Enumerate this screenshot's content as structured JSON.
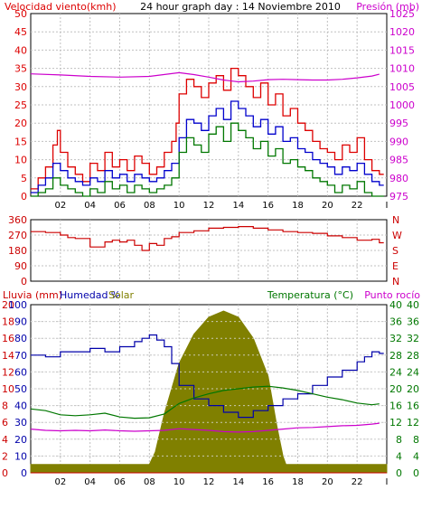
{
  "chart_data": [
    {
      "type": "line",
      "title": "24 hour graph day : 14 Noviembre 2010",
      "left_label": "Velocidad viento(kmh)",
      "right_label": "Presión (mb)",
      "x_ticks": [
        "02",
        "04",
        "06",
        "08",
        "10",
        "12",
        "14",
        "16",
        "18",
        "20",
        "22",
        "I"
      ],
      "y_left_ticks": [
        0,
        5,
        10,
        15,
        20,
        25,
        30,
        35,
        40,
        45,
        50
      ],
      "y_right_ticks": [
        975,
        980,
        985,
        990,
        995,
        1000,
        1005,
        1010,
        1015,
        1020,
        1025
      ],
      "ylim_left": [
        0,
        50
      ],
      "ylim_right": [
        975,
        1025
      ],
      "xlim": [
        0,
        24
      ],
      "grid": true,
      "colors": {
        "gust": "#dd0000",
        "average": "#0000cc",
        "minimum": "#007700",
        "pressure": "#cc00cc",
        "frame": "#000000",
        "grid": "#c0c0c0"
      },
      "series": [
        {
          "name": "",
          "role": "gust",
          "x": [
            0,
            0.5,
            1,
            1.5,
            1.8,
            2,
            2.5,
            3,
            3.5,
            4,
            4.5,
            5,
            5.5,
            6,
            6.5,
            7,
            7.5,
            8,
            8.5,
            9,
            9.5,
            9.8,
            10,
            10.5,
            11,
            11.5,
            12,
            12.5,
            13,
            13.5,
            14,
            14.5,
            15,
            15.5,
            16,
            16.5,
            17,
            17.5,
            18,
            18.5,
            19,
            19.5,
            20,
            20.5,
            21,
            21.5,
            22,
            22.5,
            23,
            23.5
          ],
          "values": [
            2,
            5,
            8,
            14,
            18,
            12,
            8,
            6,
            4,
            9,
            7,
            12,
            8,
            10,
            7,
            11,
            9,
            6,
            8,
            12,
            15,
            20,
            28,
            32,
            30,
            27,
            31,
            33,
            29,
            35,
            33,
            30,
            27,
            31,
            25,
            28,
            22,
            24,
            20,
            18,
            15,
            13,
            12,
            10,
            14,
            12,
            16,
            10,
            7,
            6
          ]
        },
        {
          "name": "",
          "role": "average",
          "x": [
            0,
            0.5,
            1,
            1.5,
            2,
            2.5,
            3,
            3.5,
            4,
            4.5,
            5,
            5.5,
            6,
            6.5,
            7,
            7.5,
            8,
            8.5,
            9,
            9.5,
            10,
            10.5,
            11,
            11.5,
            12,
            12.5,
            13,
            13.5,
            14,
            14.5,
            15,
            15.5,
            16,
            16.5,
            17,
            17.5,
            18,
            18.5,
            19,
            19.5,
            20,
            20.5,
            21,
            21.5,
            22,
            22.5,
            23,
            23.5
          ],
          "values": [
            1,
            3,
            5,
            9,
            7,
            5,
            4,
            3,
            5,
            4,
            7,
            5,
            6,
            4,
            6,
            5,
            4,
            5,
            7,
            9,
            16,
            21,
            20,
            18,
            22,
            24,
            21,
            26,
            24,
            22,
            19,
            21,
            17,
            19,
            15,
            16,
            13,
            12,
            10,
            9,
            8,
            6,
            8,
            7,
            9,
            6,
            4,
            3
          ]
        },
        {
          "name": "",
          "role": "minimum",
          "x": [
            0,
            0.5,
            1,
            1.5,
            2,
            2.5,
            3,
            3.5,
            4,
            4.5,
            5,
            5.5,
            6,
            6.5,
            7,
            7.5,
            8,
            8.5,
            9,
            9.5,
            10,
            10.5,
            11,
            11.5,
            12,
            12.5,
            13,
            13.5,
            14,
            14.5,
            15,
            15.5,
            16,
            16.5,
            17,
            17.5,
            18,
            18.5,
            19,
            19.5,
            20,
            20.5,
            21,
            21.5,
            22,
            22.5,
            23,
            23.5
          ],
          "values": [
            0,
            1,
            2,
            5,
            3,
            2,
            1,
            0,
            2,
            1,
            4,
            2,
            3,
            1,
            3,
            2,
            1,
            2,
            3,
            5,
            12,
            16,
            14,
            12,
            17,
            19,
            15,
            20,
            18,
            16,
            13,
            15,
            11,
            13,
            9,
            10,
            8,
            7,
            5,
            4,
            3,
            1,
            3,
            2,
            4,
            1,
            0,
            0
          ]
        },
        {
          "name": "",
          "role": "pressure",
          "x": [
            0,
            2,
            4,
            6,
            8,
            10,
            11,
            12,
            13,
            14,
            15,
            16,
            17,
            18,
            19,
            20,
            21,
            22,
            23,
            23.5
          ],
          "values": [
            1008.5,
            1008.2,
            1007.8,
            1007.6,
            1007.8,
            1008.8,
            1008.3,
            1007.6,
            1006.8,
            1006.3,
            1006.5,
            1006.9,
            1007.0,
            1006.9,
            1006.8,
            1006.8,
            1007.0,
            1007.4,
            1007.9,
            1008.4
          ]
        }
      ]
    },
    {
      "type": "line",
      "title": "",
      "left_ticks": [
        0,
        90,
        180,
        270,
        360
      ],
      "right_ticks": [
        "N",
        "W",
        "S",
        "E",
        "N"
      ],
      "ylim": [
        0,
        360
      ],
      "xlim": [
        0,
        24
      ],
      "grid": true,
      "colors": {
        "direction": "#cc0000",
        "right_axis": "#cc0000",
        "grid": "#c0c0c0"
      },
      "series": [
        {
          "name": "",
          "role": "direction",
          "x": [
            0,
            0.5,
            1,
            1.5,
            2,
            2.5,
            3,
            3.5,
            4,
            4.5,
            5,
            5.5,
            6,
            6.5,
            7,
            7.5,
            8,
            8.5,
            9,
            9.5,
            10,
            11,
            12,
            13,
            14,
            15,
            16,
            17,
            18,
            19,
            20,
            21,
            22,
            23,
            23.5
          ],
          "values": [
            290,
            290,
            285,
            285,
            270,
            255,
            250,
            250,
            200,
            200,
            230,
            240,
            230,
            240,
            210,
            180,
            220,
            210,
            250,
            260,
            285,
            295,
            310,
            315,
            320,
            310,
            300,
            290,
            285,
            280,
            265,
            255,
            240,
            245,
            225
          ]
        }
      ]
    },
    {
      "type": "line",
      "title": "",
      "legend": [
        "Lluvia (mm)",
        "Humedad %",
        "Solar",
        "Temperatura (°C)",
        "Punto rocío"
      ],
      "left_outer_ticks": [
        0,
        2,
        4,
        6,
        8,
        10,
        12,
        14,
        16,
        18,
        20
      ],
      "left_inner_ticks": [
        0,
        10,
        20,
        30,
        40,
        50,
        60,
        70,
        80,
        90,
        100
      ],
      "right_inner_ticks": [
        0,
        4,
        8,
        12,
        16,
        20,
        24,
        28,
        32,
        36,
        40
      ],
      "right_outer_ticks": [
        0,
        4,
        8,
        12,
        16,
        20,
        24,
        28,
        32,
        36,
        40
      ],
      "ylim_humidity": [
        0,
        100
      ],
      "ylim_temperature": [
        0,
        40
      ],
      "xlim": [
        0,
        24
      ],
      "grid": true,
      "colors": {
        "rain": "#cc0000",
        "humidity": "#0000aa",
        "solar": "#808000",
        "temperature": "#007700",
        "dewpoint": "#cc00cc",
        "grid": "#c0c0c0"
      },
      "series": [
        {
          "name": "",
          "role": "humidity",
          "x": [
            0,
            1,
            2,
            3,
            4,
            5,
            6,
            7,
            7.5,
            8,
            8.5,
            9,
            9.5,
            10,
            11,
            12,
            13,
            14,
            15,
            16,
            17,
            18,
            19,
            20,
            21,
            22,
            22.5,
            23,
            23.5
          ],
          "values": [
            70,
            69,
            72,
            72,
            74,
            72,
            75,
            78,
            80,
            82,
            79,
            75,
            65,
            52,
            44,
            40,
            36,
            33,
            37,
            40,
            44,
            47,
            52,
            57,
            61,
            66,
            69,
            72,
            71
          ]
        },
        {
          "name": "",
          "role": "temperature",
          "x": [
            0,
            1,
            2,
            3,
            4,
            5,
            6,
            7,
            8,
            9,
            10,
            11,
            12,
            13,
            14,
            15,
            16,
            17,
            18,
            19,
            20,
            21,
            22,
            23,
            23.5
          ],
          "values": [
            15.2,
            14.8,
            13.8,
            13.6,
            13.8,
            14.2,
            13.3,
            13.0,
            13.1,
            14.0,
            16.5,
            17.8,
            18.8,
            19.6,
            20.0,
            20.4,
            20.6,
            20.2,
            19.6,
            18.8,
            18.0,
            17.4,
            16.6,
            16.2,
            16.4
          ]
        },
        {
          "name": "",
          "role": "dewpoint",
          "x": [
            0,
            1,
            2,
            3,
            4,
            5,
            6,
            7,
            8,
            9,
            10,
            11,
            12,
            13,
            14,
            15,
            16,
            17,
            18,
            19,
            20,
            21,
            22,
            23,
            23.5
          ],
          "values": [
            10.4,
            10.1,
            10.0,
            10.1,
            10.0,
            10.2,
            10.0,
            9.9,
            10.0,
            10.1,
            10.5,
            10.3,
            10.1,
            9.8,
            9.7,
            9.8,
            10.1,
            10.4,
            10.7,
            10.8,
            11.0,
            11.2,
            11.3,
            11.6,
            11.8
          ]
        },
        {
          "name": "",
          "role": "solar",
          "x": [
            0,
            8,
            8.4,
            9,
            10,
            11,
            12,
            13,
            14,
            15,
            16,
            16.6,
            17,
            17.2,
            24
          ],
          "values": [
            2,
            2,
            5,
            14,
            26,
            33,
            37,
            38.5,
            37,
            32,
            23,
            11,
            4,
            2,
            2
          ]
        },
        {
          "name": "",
          "role": "rain",
          "x": [
            0,
            24
          ],
          "values": [
            0,
            0
          ]
        }
      ]
    }
  ]
}
